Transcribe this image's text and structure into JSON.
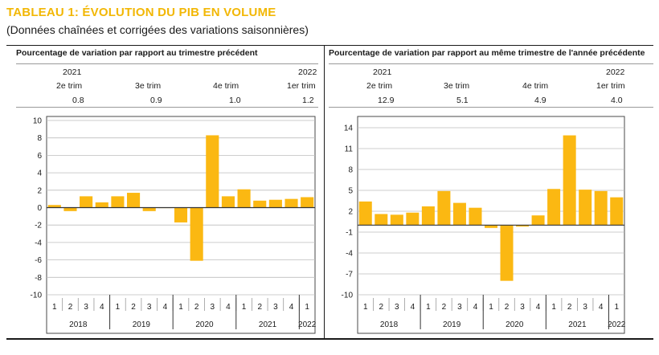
{
  "title": "TABLEAU 1: ÉVOLUTION DU PIB EN VOLUME",
  "subtitle": "(Données chaînées et corrigées des variations saisonnières)",
  "colors": {
    "accent": "#f2b705",
    "bar": "#fbb812",
    "text": "#1a1a1a"
  },
  "panels": [
    {
      "heading": "Pourcentage de variation par rapport au trimestre précédent",
      "table": {
        "years": [
          "2021",
          "",
          "",
          "2022"
        ],
        "quarters": [
          "2e trim",
          "3e trim",
          "4e trim",
          "1er trim"
        ],
        "values": [
          "0.8",
          "0.9",
          "1.0",
          "1.2"
        ]
      }
    },
    {
      "heading": "Pourcentage de variation par rapport au même trimestre de l'année précédente",
      "table": {
        "years": [
          "2021",
          "",
          "",
          "2022"
        ],
        "quarters": [
          "2e trim",
          "3e trim",
          "4e trim",
          "1er trim"
        ],
        "values": [
          "12.9",
          "5.1",
          "4.9",
          "4.0"
        ]
      }
    }
  ],
  "chart_data": [
    {
      "type": "bar",
      "categories": [
        "1",
        "2",
        "3",
        "4",
        "1",
        "2",
        "3",
        "4",
        "1",
        "2",
        "3",
        "4",
        "1",
        "2",
        "3",
        "4",
        "1"
      ],
      "groups": [
        {
          "label": "2018",
          "count": 4
        },
        {
          "label": "2019",
          "count": 4
        },
        {
          "label": "2020",
          "count": 4
        },
        {
          "label": "2021",
          "count": 4
        },
        {
          "label": "2022",
          "count": 1
        }
      ],
      "values": [
        0.3,
        -0.4,
        1.3,
        0.6,
        1.3,
        1.7,
        -0.4,
        0.0,
        -1.7,
        -6.1,
        8.3,
        1.3,
        2.1,
        0.8,
        0.9,
        1.0,
        1.2
      ],
      "ylim": [
        -10,
        10
      ],
      "yticks": [
        10,
        8,
        6,
        4,
        2,
        0,
        -2,
        -4,
        -6,
        -8,
        -10
      ],
      "ytick_labels": [
        "10",
        "8",
        "6",
        "4",
        "2",
        "0",
        "-2",
        "-4",
        "-6",
        "-8",
        "-10"
      ],
      "grid": true
    },
    {
      "type": "bar",
      "categories": [
        "1",
        "2",
        "3",
        "4",
        "1",
        "2",
        "3",
        "4",
        "1",
        "2",
        "3",
        "4",
        "1",
        "2",
        "3",
        "4",
        "1"
      ],
      "groups": [
        {
          "label": "2018",
          "count": 4
        },
        {
          "label": "2019",
          "count": 4
        },
        {
          "label": "2020",
          "count": 4
        },
        {
          "label": "2021",
          "count": 4
        },
        {
          "label": "2022",
          "count": 1
        }
      ],
      "values": [
        3.4,
        1.6,
        1.5,
        1.8,
        2.7,
        4.9,
        3.2,
        2.5,
        -0.4,
        -8.0,
        -0.2,
        1.4,
        5.2,
        12.9,
        5.1,
        4.9,
        4.0
      ],
      "ylim": [
        -10,
        14
      ],
      "yticks": [
        14,
        11,
        8,
        5,
        2,
        -1,
        -4,
        -7,
        -10
      ],
      "ytick_labels": [
        "14",
        "11",
        "8",
        "5",
        "2",
        "-1",
        "-4",
        "-7",
        "-10"
      ],
      "grid": true
    }
  ]
}
